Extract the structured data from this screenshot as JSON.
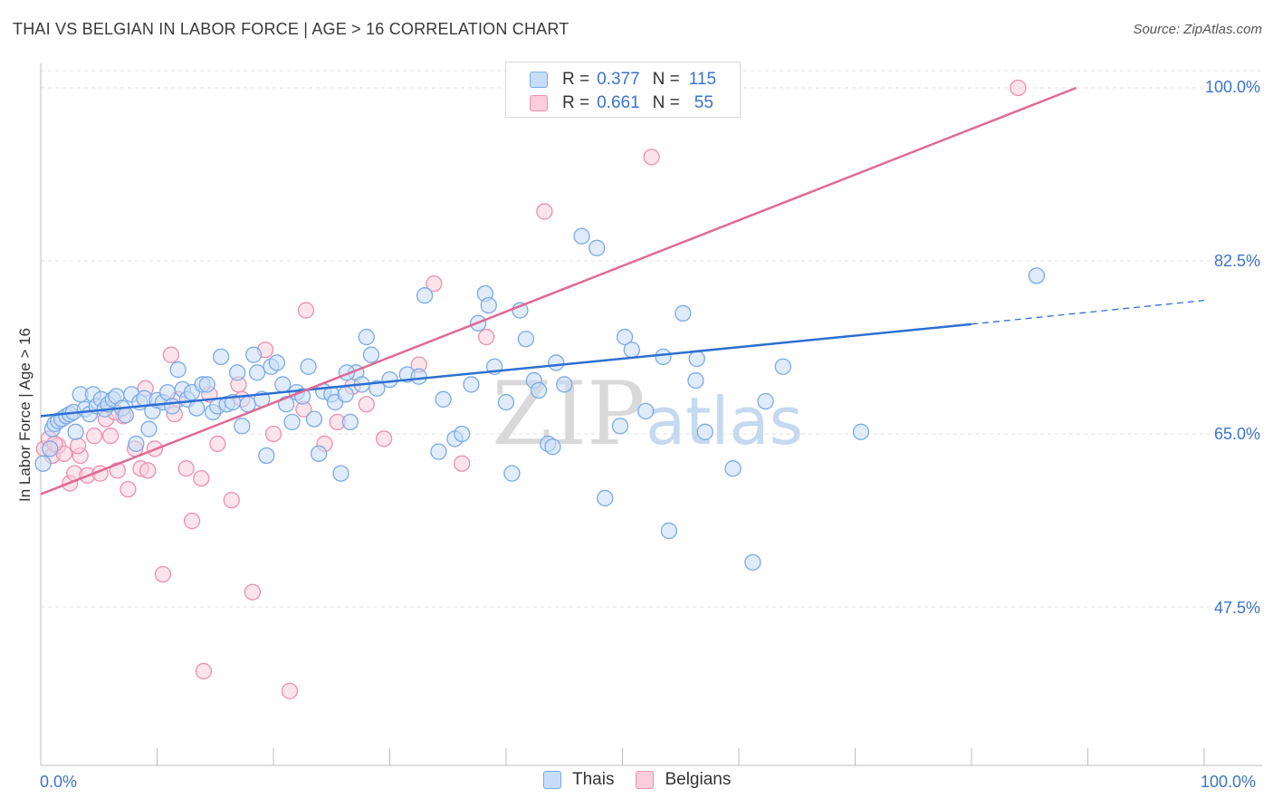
{
  "title": "THAI VS BELGIAN IN LABOR FORCE | AGE > 16 CORRELATION CHART",
  "source": "Source: ZipAtlas.com",
  "watermark": {
    "zip": "ZIP",
    "atlas": "atlas"
  },
  "colors": {
    "thais": "#7aaae8",
    "thais_fill": "#c7dcf6",
    "thais_line": "#2e6fd1",
    "belgians": "#ee8fae",
    "belgians_fill": "#f9cddb",
    "belgians_line": "#e06995",
    "axis_text": "#3b74c9"
  },
  "legend": {
    "rows": [
      {
        "r_label": "R =",
        "r_value": "0.377",
        "n_label": "N =",
        "n_value": "115"
      },
      {
        "r_label": "R =",
        "r_value": "0.661",
        "n_label": "N =",
        "n_value": "55"
      }
    ]
  },
  "bottom_legend": {
    "thais": "Thais",
    "belgians": "Belgians"
  },
  "chart_data": {
    "type": "scatter",
    "title": "THAI VS BELGIAN IN LABOR FORCE | AGE > 16 CORRELATION CHART",
    "xlabel": "",
    "ylabel": "In Labor Force | Age > 16",
    "xlim": [
      0,
      100
    ],
    "ylim": [
      33,
      102
    ],
    "x_tick_labels": [
      "0.0%",
      "100.0%"
    ],
    "y_ticks": [
      47.5,
      65.0,
      82.5,
      100.0
    ],
    "y_tick_labels": [
      "47.5%",
      "65.0%",
      "82.5%",
      "100.0%"
    ],
    "series": [
      {
        "name": "Thais",
        "r": 0.377,
        "n": 115,
        "trend": {
          "x0": 0,
          "y0": 66.8,
          "x1": 80,
          "y1": 76.1,
          "dashed_to": 100,
          "dashed_y": 78.5
        },
        "points": [
          [
            0.2,
            62
          ],
          [
            0.8,
            63.5
          ],
          [
            1,
            65.5
          ],
          [
            1.2,
            66
          ],
          [
            1.5,
            66.3
          ],
          [
            1.8,
            66.5
          ],
          [
            2.2,
            66.8
          ],
          [
            2.5,
            67
          ],
          [
            2.8,
            67.2
          ],
          [
            3,
            65.2
          ],
          [
            3.4,
            69
          ],
          [
            3.8,
            67.5
          ],
          [
            4.2,
            67
          ],
          [
            4.5,
            69
          ],
          [
            4.8,
            67.8
          ],
          [
            5.2,
            68.5
          ],
          [
            5.5,
            67.5
          ],
          [
            5.8,
            68
          ],
          [
            6.2,
            68.5
          ],
          [
            6.5,
            68.8
          ],
          [
            7,
            67.6
          ],
          [
            7.3,
            66.9
          ],
          [
            7.8,
            69
          ],
          [
            8.2,
            64
          ],
          [
            8.5,
            68.2
          ],
          [
            8.9,
            68.6
          ],
          [
            9.3,
            65.5
          ],
          [
            9.6,
            67.3
          ],
          [
            10,
            68.4
          ],
          [
            10.5,
            68.2
          ],
          [
            10.9,
            69.2
          ],
          [
            11.3,
            67.8
          ],
          [
            11.8,
            71.5
          ],
          [
            12.2,
            69.5
          ],
          [
            12.6,
            68.5
          ],
          [
            13,
            69.2
          ],
          [
            13.4,
            67.6
          ],
          [
            13.9,
            70
          ],
          [
            14.3,
            70
          ],
          [
            14.8,
            67.2
          ],
          [
            15.2,
            67.8
          ],
          [
            15.5,
            72.8
          ],
          [
            16,
            68
          ],
          [
            16.5,
            68.2
          ],
          [
            16.9,
            71.2
          ],
          [
            17.3,
            65.8
          ],
          [
            17.8,
            68
          ],
          [
            18.3,
            73
          ],
          [
            18.6,
            71.2
          ],
          [
            19,
            68.5
          ],
          [
            19.4,
            62.8
          ],
          [
            19.8,
            71.8
          ],
          [
            20.3,
            72.2
          ],
          [
            20.8,
            70
          ],
          [
            21.1,
            68
          ],
          [
            21.6,
            66.2
          ],
          [
            22,
            69.2
          ],
          [
            22.5,
            68.8
          ],
          [
            23,
            71.8
          ],
          [
            23.5,
            66.5
          ],
          [
            23.9,
            63
          ],
          [
            24.3,
            69.3
          ],
          [
            25,
            69
          ],
          [
            25.3,
            68.2
          ],
          [
            25.8,
            61
          ],
          [
            26.2,
            69
          ],
          [
            26.6,
            66.2
          ],
          [
            27.1,
            71.2
          ],
          [
            27.6,
            70
          ],
          [
            28,
            74.8
          ],
          [
            28.4,
            73
          ],
          [
            28.9,
            69.6
          ],
          [
            26.3,
            71.2
          ],
          [
            30,
            70.5
          ],
          [
            31.5,
            71
          ],
          [
            32.5,
            70.8
          ],
          [
            33,
            79
          ],
          [
            34.2,
            63.2
          ],
          [
            34.6,
            68.5
          ],
          [
            35.6,
            64.5
          ],
          [
            36.2,
            65
          ],
          [
            37,
            70
          ],
          [
            37.6,
            76.2
          ],
          [
            38.2,
            79.2
          ],
          [
            38.5,
            78
          ],
          [
            39,
            71.8
          ],
          [
            40,
            68.2
          ],
          [
            40.5,
            61
          ],
          [
            41.2,
            77.5
          ],
          [
            41.7,
            74.6
          ],
          [
            42.4,
            70.4
          ],
          [
            42.8,
            69.4
          ],
          [
            43.6,
            64
          ],
          [
            44,
            63.7
          ],
          [
            44.3,
            72.2
          ],
          [
            45,
            70
          ],
          [
            46.5,
            85
          ],
          [
            47.8,
            83.8
          ],
          [
            48.5,
            58.5
          ],
          [
            49.8,
            65.8
          ],
          [
            50.2,
            74.8
          ],
          [
            50.8,
            73.5
          ],
          [
            55.2,
            77.2
          ],
          [
            56.4,
            72.6
          ],
          [
            61.2,
            52
          ],
          [
            62.3,
            68.3
          ],
          [
            63.8,
            71.8
          ],
          [
            52,
            67.3
          ],
          [
            53.5,
            72.8
          ],
          [
            54,
            55.2
          ],
          [
            56.3,
            70.4
          ],
          [
            57.1,
            65.2
          ],
          [
            59.5,
            61.5
          ],
          [
            70.5,
            65.2
          ],
          [
            85.6,
            81
          ]
        ]
      },
      {
        "name": "Belgians",
        "r": 0.661,
        "n": 55,
        "trend": {
          "x0": 0,
          "y0": 58.9,
          "x1": 89,
          "y1": 100
        },
        "points": [
          [
            0.3,
            63.5
          ],
          [
            0.7,
            64.5
          ],
          [
            1,
            62.8
          ],
          [
            1.5,
            63.8
          ],
          [
            2,
            63
          ],
          [
            2.5,
            60
          ],
          [
            2.9,
            61
          ],
          [
            3.4,
            62.8
          ],
          [
            4,
            60.8
          ],
          [
            4.6,
            64.8
          ],
          [
            5.1,
            61
          ],
          [
            5.6,
            66.5
          ],
          [
            6,
            64.8
          ],
          [
            6.6,
            61.3
          ],
          [
            7.1,
            66.8
          ],
          [
            7.5,
            59.4
          ],
          [
            8.1,
            63.5
          ],
          [
            8.6,
            61.5
          ],
          [
            9.2,
            61.3
          ],
          [
            9.8,
            63.5
          ],
          [
            10.5,
            50.8
          ],
          [
            11.2,
            73
          ],
          [
            11.5,
            67
          ],
          [
            12.5,
            61.5
          ],
          [
            13,
            56.2
          ],
          [
            13.8,
            60.5
          ],
          [
            14.5,
            69
          ],
          [
            15.2,
            64
          ],
          [
            14,
            41
          ],
          [
            16.4,
            58.3
          ],
          [
            17.3,
            68.5
          ],
          [
            18.2,
            49
          ],
          [
            19.3,
            73.5
          ],
          [
            21.4,
            39
          ],
          [
            20,
            65
          ],
          [
            22.6,
            67.5
          ],
          [
            22.8,
            77.5
          ],
          [
            24.4,
            64
          ],
          [
            25.5,
            66.2
          ],
          [
            26.8,
            69.8
          ],
          [
            29.5,
            64.5
          ],
          [
            33.8,
            80.2
          ],
          [
            36.2,
            62
          ],
          [
            38.3,
            74.8
          ],
          [
            43.3,
            87.5
          ],
          [
            52.5,
            93
          ],
          [
            84,
            100
          ],
          [
            32.5,
            72
          ],
          [
            11.8,
            68.5
          ],
          [
            9,
            69.6
          ],
          [
            6.4,
            67.2
          ],
          [
            3.2,
            63.8
          ],
          [
            17,
            70
          ],
          [
            28,
            68
          ],
          [
            1.2,
            64
          ]
        ]
      }
    ]
  }
}
